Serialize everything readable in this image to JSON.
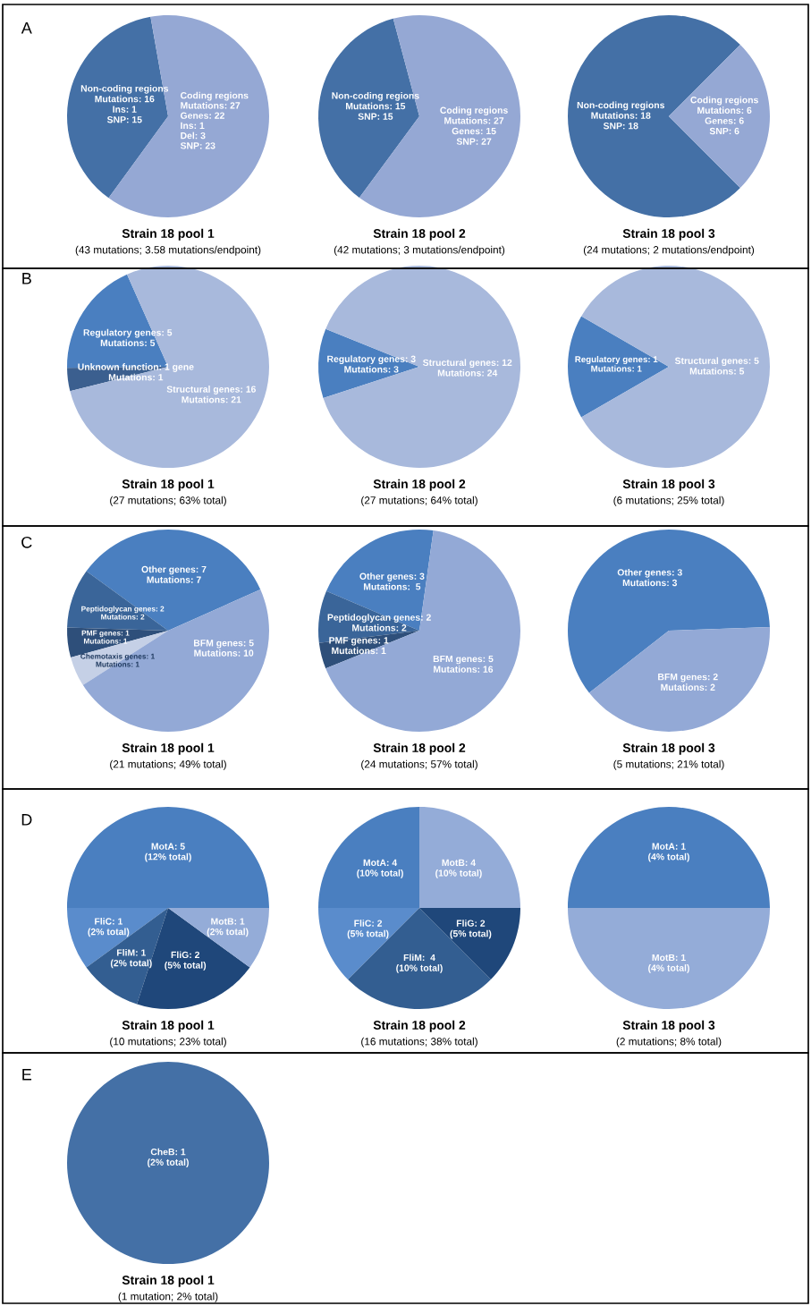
{
  "chart_data": [
    {
      "type": "pie",
      "title": "Strain 18 pool 1",
      "subtitle": "(43 mutations; 3.58 mutations/endpoint)",
      "annotations": [
        "A"
      ],
      "categories": [
        "Non-coding regions\nMutations: 16\nIns: 1\nSNP: 15",
        "Coding regions\nMutations: 27\nGenes: 22\nIns: 1\nDel: 3\nSNP: 23"
      ],
      "values": [
        16,
        27
      ],
      "colors": [
        "#4470a6",
        "#95a8d4"
      ]
    },
    {
      "type": "pie",
      "title": "Strain 18 pool 2",
      "subtitle": "(42 mutations; 3 mutations/endpoint)",
      "categories": [
        "Non-coding regions\nMutations: 15\nSNP: 15",
        "Coding regions\nMutations: 27\nGenes: 15\nSNP: 27"
      ],
      "values": [
        15,
        27
      ],
      "colors": [
        "#4470a6",
        "#95a8d4"
      ]
    },
    {
      "type": "pie",
      "title": "Strain 18 pool 3",
      "subtitle": "(24 mutations; 2 mutations/endpoint)",
      "categories": [
        "Non-coding regions\nMutations: 18\nSNP: 18",
        "Coding regions\nMutations: 6\nGenes: 6\nSNP: 6"
      ],
      "values": [
        18,
        6
      ],
      "colors": [
        "#4470a6",
        "#95a8d4"
      ]
    },
    {
      "type": "pie",
      "title": "Strain 18 pool 1",
      "subtitle": "(27 mutations; 63% total)",
      "annotations": [
        "B"
      ],
      "categories": [
        "Regulatory genes: 5\nMutations: 5",
        "Unknown function: 1 gene\nMutations: 1",
        "Structural genes: 16\nMutations: 21"
      ],
      "values": [
        5,
        1,
        21
      ],
      "colors": [
        "#4a7fc0",
        "#3b5f8f",
        "#a8b9dc"
      ]
    },
    {
      "type": "pie",
      "title": "Strain 18 pool 2",
      "subtitle": "(27 mutations; 64% total)",
      "categories": [
        "Regulatory genes: 3\nMutations: 3",
        "Structural genes: 12\nMutations: 24"
      ],
      "values": [
        3,
        24
      ],
      "colors": [
        "#4a7fc0",
        "#a8b9dc"
      ]
    },
    {
      "type": "pie",
      "title": "Strain 18 pool 3",
      "subtitle": "(6 mutations; 25% total)",
      "categories": [
        "Regulatory genes: 1\nMutations: 1",
        "Structural genes: 5\nMutations: 5"
      ],
      "values": [
        1,
        5
      ],
      "colors": [
        "#4a7fc0",
        "#a8b9dc"
      ]
    },
    {
      "type": "pie",
      "title": "Strain 18 pool 1",
      "subtitle": "(21 mutations; 49% total)",
      "annotations": [
        "C"
      ],
      "categories": [
        "Other genes: 7\nMutations: 7",
        "Peptidoglycan genes: 2\nMutations: 2",
        "PMF genes: 1\nMutations: 1",
        "Chemotaxis genes: 1\nMutations: 1",
        "BFM genes: 5\nMutations: 10"
      ],
      "values": [
        7,
        2,
        1,
        1,
        10
      ],
      "colors": [
        "#4a7fc0",
        "#3a6599",
        "#2e4f7a",
        "#c5d0e6",
        "#93a9d6"
      ]
    },
    {
      "type": "pie",
      "title": "Strain 18 pool 2",
      "subtitle": "(24 mutations; 57% total)",
      "categories": [
        "Other genes: 3\nMutations:  5",
        "Peptidoglycan genes: 2\nMutations: 2",
        "PMF genes: 1\nMutations: 1",
        "BFM genes: 5\nMutations: 16"
      ],
      "values": [
        5,
        2,
        1,
        16
      ],
      "colors": [
        "#4a7fc0",
        "#3a6599",
        "#2e4f7a",
        "#93a9d6"
      ]
    },
    {
      "type": "pie",
      "title": "Strain 18 pool 3",
      "subtitle": "(5 mutations; 21% total)",
      "categories": [
        "Other genes: 3\nMutations: 3",
        "BFM genes: 2\nMutations: 2"
      ],
      "values": [
        3,
        2
      ],
      "colors": [
        "#4a7fc0",
        "#93a9d6"
      ]
    },
    {
      "type": "pie",
      "title": "Strain 18 pool 1",
      "subtitle": "(10 mutations; 23% total)",
      "annotations": [
        "D"
      ],
      "categories": [
        "MotA: 5\n(12% total)",
        "FliC: 1\n(2% total)",
        "FliM: 1\n(2% total)",
        "FliG: 2\n(5% total)",
        "MotB: 1\n(2% total)"
      ],
      "values": [
        5,
        1,
        1,
        2,
        1
      ],
      "colors": [
        "#4a7fc0",
        "#5a8ccc",
        "#335e91",
        "#1f477a",
        "#94acd8"
      ]
    },
    {
      "type": "pie",
      "title": "Strain 18 pool 2",
      "subtitle": "(16 mutations; 38% total)",
      "categories": [
        "MotA: 4\n(10% total)",
        "FliC: 2\n(5% total)",
        "FliM:  4\n(10% total)",
        "FliG: 2\n(5% total)",
        "MotB: 4\n(10% total)"
      ],
      "values": [
        4,
        2,
        4,
        2,
        4
      ],
      "colors": [
        "#4a7fc0",
        "#5a8ccc",
        "#335e91",
        "#1f477a",
        "#94acd8"
      ]
    },
    {
      "type": "pie",
      "title": "Strain 18 pool 3",
      "subtitle": "(2 mutations; 8% total)",
      "categories": [
        "MotA: 1\n(4% total)",
        "MotB: 1\n(4% total)"
      ],
      "values": [
        1,
        1
      ],
      "colors": [
        "#4a7fc0",
        "#94acd8"
      ]
    },
    {
      "type": "pie",
      "title": "Strain 18 pool 1",
      "subtitle": "(1 mutation; 2% total)",
      "annotations": [
        "E"
      ],
      "categories": [
        "CheB: 1\n(2% total)"
      ],
      "values": [
        1
      ],
      "colors": [
        "#4470a6"
      ]
    }
  ]
}
